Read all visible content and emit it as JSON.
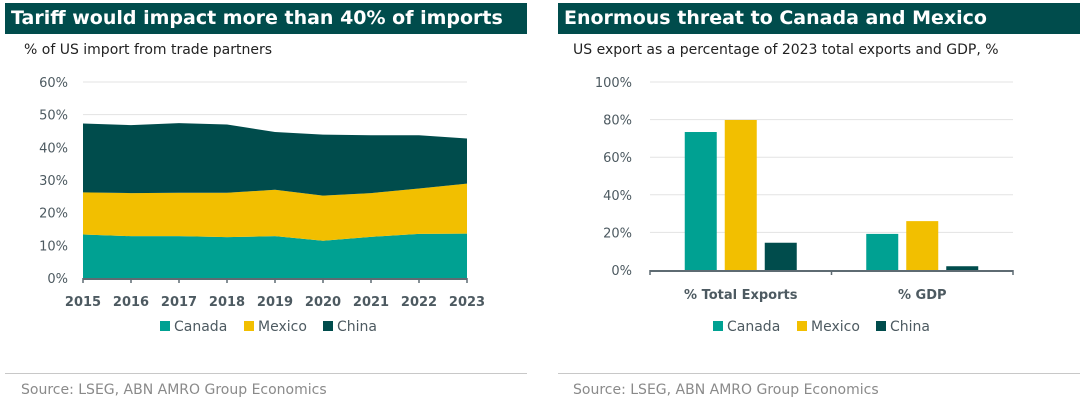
{
  "colors": {
    "header_bg": "#004c4c",
    "canada": "#00a192",
    "mexico": "#f2bf00",
    "china": "#004c4c",
    "axis": "#5e6b72",
    "grid": "#e3e3e3"
  },
  "left": {
    "title": "Tariff would impact more than 40% of imports",
    "subtitle": "% of US import from trade partners",
    "source": "Source:  LSEG, ABN AMRO Group Economics"
  },
  "right": {
    "title": "Enormous threat to Canada and Mexico",
    "subtitle": "US export as a percentage of 2023 total exports and GDP, %",
    "source": "Source: LSEG, ABN AMRO Group Economics"
  },
  "chart_data": [
    {
      "type": "area",
      "stacked": true,
      "title": "Tariff would impact more than 40% of imports",
      "subtitle": "% of US import from trade partners",
      "xlabel": "",
      "ylabel": "",
      "x": [
        "2015",
        "2016",
        "2017",
        "2018",
        "2019",
        "2020",
        "2021",
        "2022",
        "2023"
      ],
      "series": [
        {
          "name": "Canada",
          "color": "#00a192",
          "values": [
            13.3,
            12.8,
            12.8,
            12.5,
            12.8,
            11.4,
            12.6,
            13.5,
            13.6
          ]
        },
        {
          "name": "Mexico",
          "color": "#f2bf00",
          "values": [
            12.9,
            13.2,
            13.3,
            13.6,
            14.2,
            13.8,
            13.4,
            13.9,
            15.3
          ]
        },
        {
          "name": "China",
          "color": "#004c4c",
          "values": [
            21.1,
            20.8,
            21.3,
            20.9,
            17.7,
            18.7,
            17.7,
            16.3,
            13.8
          ]
        }
      ],
      "ylim": [
        0,
        60
      ],
      "yticks": [
        "0%",
        "10%",
        "20%",
        "30%",
        "40%",
        "50%",
        "60%"
      ],
      "grid": true,
      "legend": "bottom-center"
    },
    {
      "type": "bar",
      "title": "Enormous threat to Canada and Mexico",
      "subtitle": "US export as a percentage of 2023 total exports and GDP, %",
      "categories": [
        "% Total Exports",
        "% GDP"
      ],
      "series": [
        {
          "name": "Canada",
          "color": "#00a192",
          "values": [
            73.4,
            19.2
          ]
        },
        {
          "name": "Mexico",
          "color": "#f2bf00",
          "values": [
            79.8,
            26.0
          ]
        },
        {
          "name": "China",
          "color": "#004c4c",
          "values": [
            14.5,
            2.0
          ]
        }
      ],
      "ylim": [
        0,
        100
      ],
      "yticks": [
        "0%",
        "20%",
        "40%",
        "60%",
        "80%",
        "100%"
      ],
      "grid": true,
      "legend": "bottom-center"
    }
  ]
}
